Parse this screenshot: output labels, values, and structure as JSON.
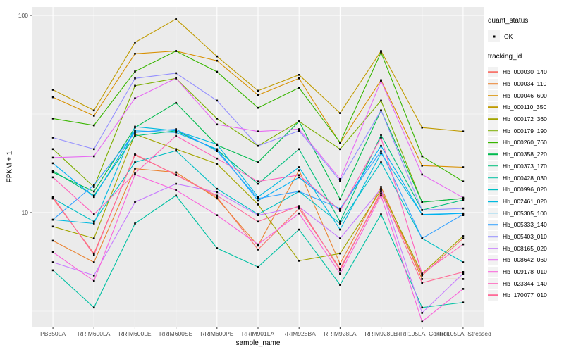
{
  "figure": {
    "background": "#FFFFFF",
    "panel_background": "#EBEBEB",
    "grid_color": "#FFFFFF",
    "axis_text_color": "#4D4D4D",
    "tick_color": "#333333",
    "point_color": "#000000"
  },
  "axes": {
    "y_title": "FPKM + 1",
    "x_title": "sample_name",
    "y_scale": "log10"
  },
  "legend": {
    "quant_status": {
      "title": "quant_status",
      "items": [
        {
          "label": "OK",
          "symbol": "black-point"
        }
      ]
    },
    "tracking_id": {
      "title": "tracking_id"
    }
  },
  "chart_data": {
    "type": "line",
    "title": "",
    "xlabel": "sample_name",
    "ylabel": "FPKM + 1",
    "y_scale": "log10",
    "ylim": [
      2.6,
      110
    ],
    "y_ticks": [
      10,
      100
    ],
    "y_minor_gridlines": [
      3.1623,
      31.623
    ],
    "grid": true,
    "legend_position": "right",
    "point_marker": "small-black-square",
    "categories": [
      "PB350LA",
      "RRIM600LA",
      "RRIM600LE",
      "RRIM600SE",
      "RRIM600PE",
      "RRIM901LA",
      "RRIM928BA",
      "RRIM928LA",
      "RRIM928LE",
      "RRII105LA_Control",
      "RRII105LA_Stressed"
    ],
    "series": [
      {
        "name": "Hb_000030_140",
        "color": "#F8766D",
        "values": [
          11.8,
          6.2,
          19.6,
          15.6,
          12.0,
          6.5,
          10.5,
          5.2,
          12.5,
          4.8,
          7.4
        ]
      },
      {
        "name": "Hb_000034_110",
        "color": "#EA8331",
        "values": [
          7.2,
          5.6,
          16.7,
          16.0,
          11.8,
          6.8,
          16.4,
          5.5,
          13.5,
          4.6,
          4.6
        ]
      },
      {
        "name": "Hb_000046_600",
        "color": "#D89000",
        "values": [
          38.5,
          31.0,
          64.0,
          66.0,
          59.0,
          39.5,
          48.0,
          22.5,
          47.0,
          17.3,
          17.0
        ]
      },
      {
        "name": "Hb_000110_350",
        "color": "#C09B00",
        "values": [
          42.0,
          33.0,
          73.0,
          96.0,
          62.0,
          41.5,
          50.0,
          32.0,
          66.0,
          27.0,
          25.8
        ]
      },
      {
        "name": "Hb_000172_360",
        "color": "#A3A500",
        "values": [
          8.5,
          7.4,
          25.0,
          21.0,
          17.7,
          11.0,
          5.7,
          6.2,
          13.0,
          4.9,
          7.6
        ]
      },
      {
        "name": "Hb_000179_190",
        "color": "#7CAE00",
        "values": [
          21.0,
          13.5,
          44.0,
          48.0,
          30.0,
          21.8,
          29.0,
          21.0,
          37.0,
          11.3,
          11.8
        ]
      },
      {
        "name": "Hb_000260_760",
        "color": "#39B600",
        "values": [
          30.0,
          27.7,
          52.0,
          66.0,
          51.8,
          34.0,
          43.0,
          22.7,
          65.0,
          19.3,
          14.4
        ]
      },
      {
        "name": "Hb_000358_220",
        "color": "#00BB4E",
        "values": [
          16.0,
          12.8,
          27.0,
          36.0,
          22.0,
          18.0,
          29.0,
          11.7,
          33.0,
          11.3,
          11.8
        ]
      },
      {
        "name": "Hb_000373_170",
        "color": "#00BF7D",
        "values": [
          16.3,
          12.2,
          24.5,
          26.0,
          20.8,
          14.0,
          21.0,
          9.0,
          24.7,
          10.3,
          11.6
        ]
      },
      {
        "name": "Hb_000428_030",
        "color": "#00C1A3",
        "values": [
          5.1,
          3.3,
          8.8,
          12.2,
          6.6,
          5.3,
          8.2,
          4.3,
          9.8,
          3.3,
          3.5
        ]
      },
      {
        "name": "Hb_000996_020",
        "color": "#00BFC4",
        "values": [
          11.8,
          9.0,
          18.0,
          20.6,
          13.2,
          9.8,
          12.8,
          8.8,
          18.0,
          7.4,
          5.6
        ]
      },
      {
        "name": "Hb_002461_020",
        "color": "#00BAE0",
        "values": [
          9.2,
          8.8,
          27.3,
          26.0,
          22.2,
          12.0,
          17.0,
          8.2,
          20.0,
          9.8,
          9.7
        ]
      },
      {
        "name": "Hb_005305_100",
        "color": "#00B0F6",
        "values": [
          17.8,
          12.0,
          26.0,
          25.5,
          21.0,
          11.5,
          15.1,
          10.3,
          21.8,
          9.8,
          9.9
        ]
      },
      {
        "name": "Hb_005333_140",
        "color": "#35A2FF",
        "values": [
          9.2,
          13.8,
          25.5,
          26.5,
          20.5,
          11.8,
          12.8,
          10.5,
          20.5,
          7.4,
          9.8
        ]
      },
      {
        "name": "Hb_005403_010",
        "color": "#9590FF",
        "values": [
          24.0,
          21.0,
          48.0,
          51.0,
          37.0,
          21.8,
          26.0,
          14.5,
          33.0,
          10.3,
          10.5
        ]
      },
      {
        "name": "Hb_008165_020",
        "color": "#C77CFF",
        "values": [
          5.6,
          4.8,
          11.3,
          14.0,
          12.7,
          9.7,
          10.7,
          7.4,
          13.2,
          3.1,
          4.9
        ]
      },
      {
        "name": "Hb_008642_060",
        "color": "#E76BF3",
        "values": [
          19.0,
          19.3,
          38.0,
          48.0,
          28.0,
          25.8,
          26.5,
          14.8,
          46.5,
          15.6,
          11.9
        ]
      },
      {
        "name": "Hb_009178_010",
        "color": "#FA62DB",
        "values": [
          6.3,
          4.5,
          15.6,
          13.0,
          9.7,
          6.9,
          9.9,
          4.9,
          12.2,
          2.8,
          4.1
        ]
      },
      {
        "name": "Hb_023344_140",
        "color": "#FF62BC",
        "values": [
          15.1,
          9.8,
          15.8,
          24.5,
          18.8,
          14.4,
          15.5,
          10.2,
          24.0,
          4.9,
          6.9
        ]
      },
      {
        "name": "Hb_170077_010",
        "color": "#FF6A98",
        "values": [
          12.0,
          6.1,
          19.8,
          15.5,
          12.2,
          9.0,
          10.8,
          5.1,
          12.8,
          4.4,
          5.0
        ]
      }
    ]
  }
}
